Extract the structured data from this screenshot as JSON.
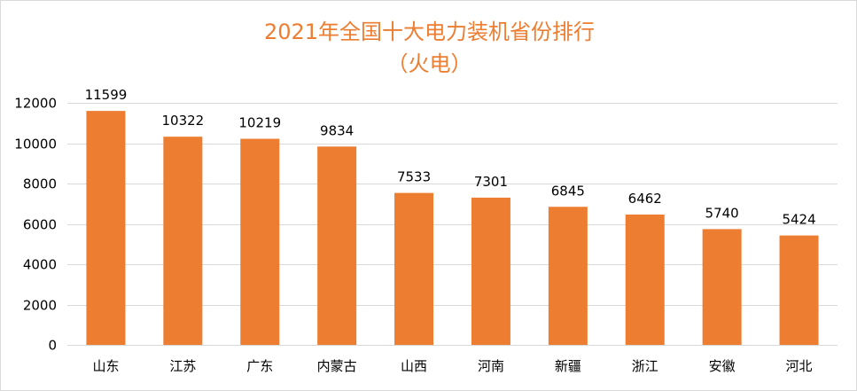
{
  "chart_data": {
    "type": "bar",
    "title": "2021年全国十大电力装机省份排行",
    "subtitle": "（火电）",
    "categories": [
      "山东",
      "江苏",
      "广东",
      "内蒙古",
      "山西",
      "河南",
      "新疆",
      "浙江",
      "安徽",
      "河北"
    ],
    "values": [
      11599,
      10322,
      10219,
      9834,
      7533,
      7301,
      6845,
      6462,
      5740,
      5424
    ],
    "ylim": [
      0,
      12000
    ],
    "yticks": [
      0,
      2000,
      4000,
      6000,
      8000,
      10000,
      12000
    ],
    "xlabel": "",
    "ylabel": "",
    "grid": true,
    "legend": "none",
    "bar_color": "#ED7D31",
    "title_color": "#ED7D31",
    "grid_color": "#d9d9d9"
  }
}
